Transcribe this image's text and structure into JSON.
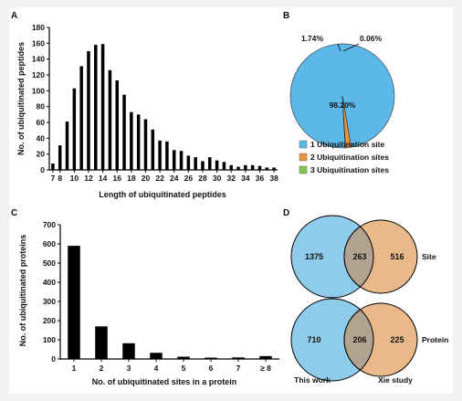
{
  "panels": {
    "a": "A",
    "b": "B",
    "c": "C",
    "d": "D"
  },
  "colors": {
    "bar": "#000000",
    "ubiq_1": "#5cb8e8",
    "ubiq_2": "#e8943a",
    "ubiq_3": "#7ec850",
    "this_work": "#8fcbeb",
    "xie_study": "#eab98a",
    "overlap": "#b1a38f"
  },
  "chart_data": [
    {
      "type": "bar",
      "xlabel": "Length of ubiquitinated peptides",
      "ylabel": "No. of ubiquitinated peptides",
      "ylim": [
        0,
        180
      ],
      "yticks": [
        0,
        20,
        40,
        60,
        80,
        100,
        120,
        140,
        160,
        180
      ],
      "xticks": [
        "7",
        "8",
        "10",
        "12",
        "14",
        "16",
        "18",
        "20",
        "22",
        "24",
        "26",
        "28",
        "30",
        "32",
        "34",
        "36",
        "38"
      ],
      "categories": [
        7,
        8,
        9,
        10,
        11,
        12,
        13,
        14,
        15,
        16,
        17,
        18,
        19,
        20,
        21,
        22,
        23,
        24,
        25,
        26,
        27,
        28,
        29,
        30,
        31,
        32,
        33,
        34,
        35,
        36,
        37,
        38
      ],
      "values": [
        8,
        31,
        61,
        103,
        131,
        150,
        158,
        159,
        126,
        113,
        95,
        73,
        70,
        64,
        51,
        37,
        36,
        25,
        24,
        18,
        16,
        11,
        16,
        12,
        10,
        6,
        4,
        6,
        6,
        5,
        3,
        3
      ]
    },
    {
      "type": "pie",
      "categories": [
        "1 Ubiquitination site",
        "2 Ubiquitination sites",
        "3 Ubiquitination sites"
      ],
      "values": [
        98.2,
        1.74,
        0.06
      ],
      "labels": [
        "98.20%",
        "1.74%",
        "0.06%"
      ],
      "legend_position": "bottom"
    },
    {
      "type": "bar",
      "xlabel": "No. of ubiquitinated sites in a protein",
      "ylabel": "No. of ubiquitinated proteins",
      "ylim": [
        0,
        700
      ],
      "yticks": [
        0,
        100,
        200,
        300,
        400,
        500,
        600,
        700
      ],
      "categories": [
        "1",
        "2",
        "3",
        "4",
        "5",
        "6",
        "7",
        "≥ 8"
      ],
      "values": [
        590,
        170,
        82,
        32,
        12,
        7,
        8,
        15
      ]
    },
    {
      "type": "venn",
      "sets": [
        "This work",
        "Xie study"
      ],
      "groups": [
        {
          "label": "Site",
          "only_a": 1375,
          "both": 263,
          "only_b": 516
        },
        {
          "label": "Protein",
          "only_a": 710,
          "both": 206,
          "only_b": 225
        }
      ]
    }
  ]
}
